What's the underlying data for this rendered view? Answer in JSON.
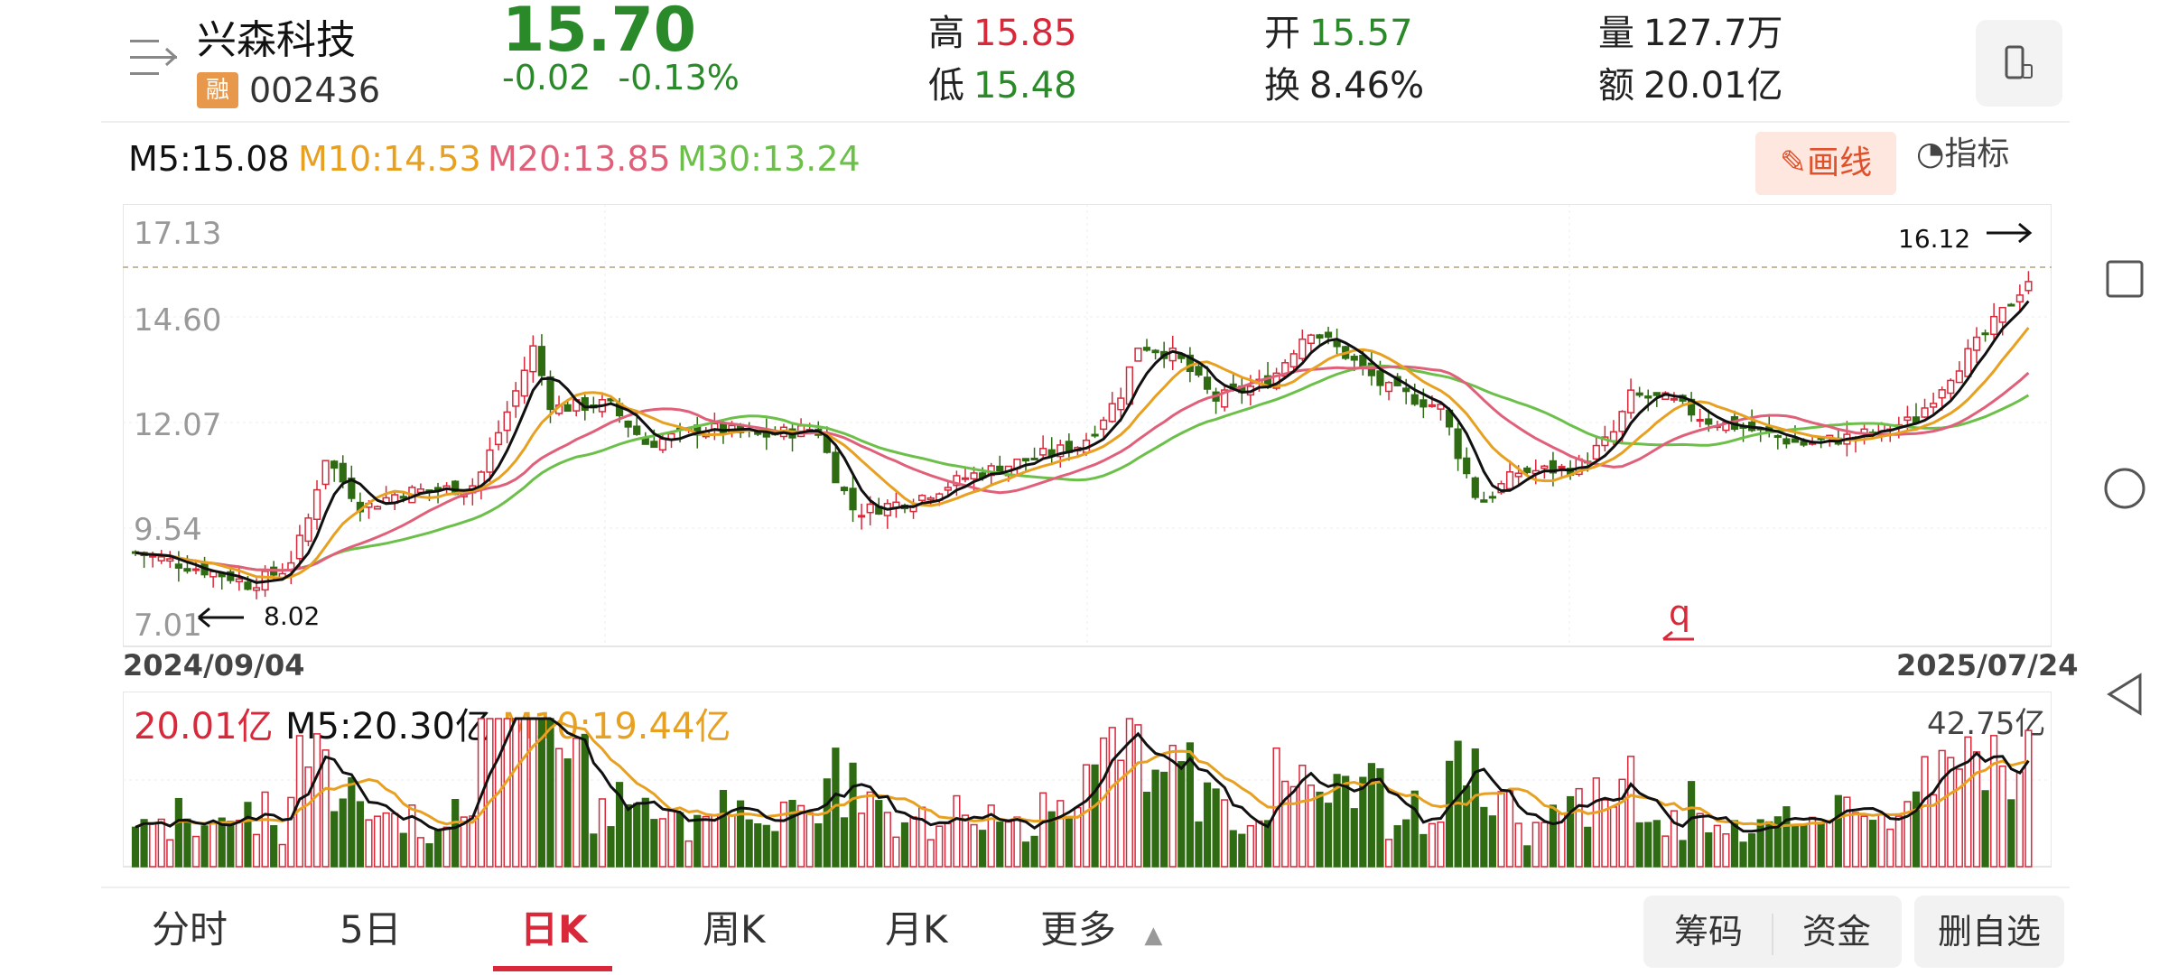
{
  "stock": {
    "name": "兴森科技",
    "badge": "融",
    "code": "002436",
    "price": "15.70",
    "change": "-0.02",
    "change_pct": "-0.13%"
  },
  "quote": {
    "high_label": "高",
    "high": "15.85",
    "low_label": "低",
    "low": "15.48",
    "open_label": "开",
    "open": "15.57",
    "turnover_label": "换",
    "turnover": "8.46%",
    "volume_label": "量",
    "volume": "127.7万",
    "amount_label": "额",
    "amount": "20.01亿"
  },
  "ma_legend": {
    "m5": "M5:15.08",
    "m10": "M10:14.53",
    "m20": "M20:13.85",
    "m30": "M30:13.24"
  },
  "tools": {
    "draw": "画线",
    "indicator": "指标"
  },
  "volume_legend": {
    "current": "20.01亿",
    "m5": "M5:20.30亿",
    "m10": "M10:19.44亿",
    "max": "42.75亿"
  },
  "tabs": [
    "分时",
    "5日",
    "日K",
    "周K",
    "月K",
    "更多"
  ],
  "active_tab": "日K",
  "buttons": {
    "chips": "筹码",
    "funds": "资金",
    "remove": "删自选"
  },
  "colors": {
    "up": "#d8283a",
    "down": "#2e6b12",
    "ma5": "#111111",
    "ma10": "#e8a020",
    "ma20": "#e0607a",
    "ma30": "#6cc04a"
  },
  "chart_data": {
    "type": "candlestick",
    "y_ticks": [
      "17.13",
      "14.60",
      "12.07",
      "9.54",
      "7.01"
    ],
    "ylim": [
      7.01,
      17.13
    ],
    "x_start_label": "2024/09/04",
    "x_end_label": "2025/07/24",
    "annotations": {
      "max": "16.12",
      "min": "8.02",
      "marker": "q"
    },
    "close_trend": [
      {
        "x": 0,
        "y": 8.9
      },
      {
        "x": 0.05,
        "y": 8.3
      },
      {
        "x": 0.06,
        "y": 8.1
      },
      {
        "x": 0.08,
        "y": 8.5
      },
      {
        "x": 0.09,
        "y": 9.5
      },
      {
        "x": 0.1,
        "y": 11.3
      },
      {
        "x": 0.12,
        "y": 10.0
      },
      {
        "x": 0.14,
        "y": 10.4
      },
      {
        "x": 0.17,
        "y": 10.5
      },
      {
        "x": 0.18,
        "y": 10.6
      },
      {
        "x": 0.2,
        "y": 12.8
      },
      {
        "x": 0.21,
        "y": 14.0
      },
      {
        "x": 0.22,
        "y": 12.5
      },
      {
        "x": 0.25,
        "y": 12.6
      },
      {
        "x": 0.27,
        "y": 11.6
      },
      {
        "x": 0.3,
        "y": 12.0
      },
      {
        "x": 0.33,
        "y": 11.8
      },
      {
        "x": 0.36,
        "y": 12.0
      },
      {
        "x": 0.37,
        "y": 10.8
      },
      {
        "x": 0.38,
        "y": 9.9
      },
      {
        "x": 0.41,
        "y": 10.2
      },
      {
        "x": 0.44,
        "y": 10.8
      },
      {
        "x": 0.47,
        "y": 11.2
      },
      {
        "x": 0.5,
        "y": 11.6
      },
      {
        "x": 0.52,
        "y": 12.8
      },
      {
        "x": 0.53,
        "y": 14.1
      },
      {
        "x": 0.55,
        "y": 13.8
      },
      {
        "x": 0.57,
        "y": 12.7
      },
      {
        "x": 0.6,
        "y": 13.2
      },
      {
        "x": 0.62,
        "y": 14.5
      },
      {
        "x": 0.64,
        "y": 13.8
      },
      {
        "x": 0.66,
        "y": 13.0
      },
      {
        "x": 0.69,
        "y": 12.5
      },
      {
        "x": 0.7,
        "y": 11.2
      },
      {
        "x": 0.71,
        "y": 10.1
      },
      {
        "x": 0.73,
        "y": 10.9
      },
      {
        "x": 0.76,
        "y": 11.0
      },
      {
        "x": 0.78,
        "y": 11.8
      },
      {
        "x": 0.79,
        "y": 12.8
      },
      {
        "x": 0.81,
        "y": 12.7
      },
      {
        "x": 0.83,
        "y": 12.2
      },
      {
        "x": 0.85,
        "y": 12.0
      },
      {
        "x": 0.88,
        "y": 11.6
      },
      {
        "x": 0.91,
        "y": 11.8
      },
      {
        "x": 0.94,
        "y": 12.2
      },
      {
        "x": 0.96,
        "y": 13.4
      },
      {
        "x": 0.98,
        "y": 14.5
      },
      {
        "x": 1.0,
        "y": 15.7
      }
    ]
  }
}
